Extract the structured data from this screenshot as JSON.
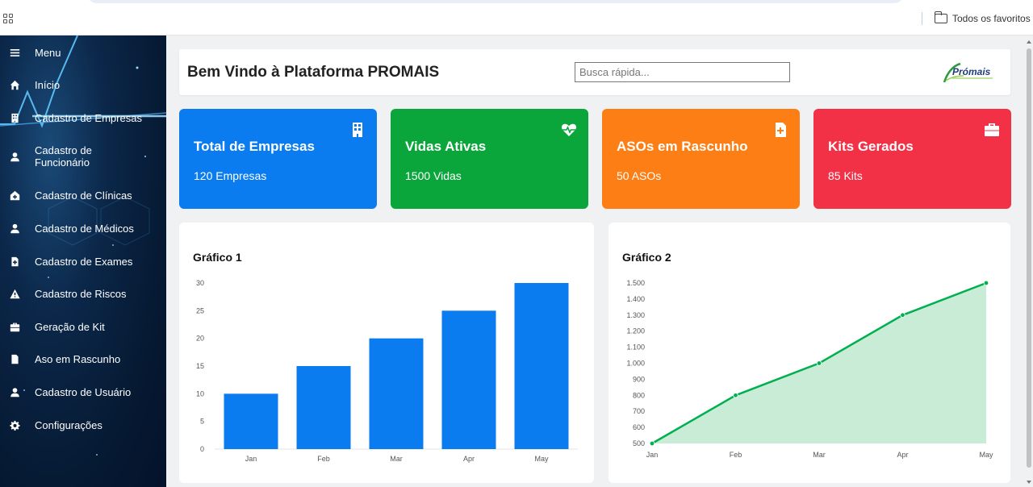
{
  "browser": {
    "bookmarks_label": "Todos os favoritos"
  },
  "sidebar": {
    "items": [
      {
        "label": "Menu",
        "icon": "menu-icon"
      },
      {
        "label": "Início",
        "icon": "home-icon"
      },
      {
        "label": "Cadastro de Empresas",
        "icon": "building-icon"
      },
      {
        "label": "Cadastro de\nFuncionário",
        "icon": "user-icon"
      },
      {
        "label": "Cadastro de Clínicas",
        "icon": "clinic-icon"
      },
      {
        "label": "Cadastro de Médicos",
        "icon": "doctor-icon"
      },
      {
        "label": "Cadastro de Exames",
        "icon": "file-medical-icon"
      },
      {
        "label": "Cadastro de Riscos",
        "icon": "warning-icon"
      },
      {
        "label": "Geração de Kit",
        "icon": "kit-icon"
      },
      {
        "label": "Aso em Rascunho",
        "icon": "file-icon"
      },
      {
        "label": "Cadastro de Usuário",
        "icon": "user-icon"
      },
      {
        "label": "Configurações",
        "icon": "gear-icon"
      }
    ]
  },
  "header": {
    "title": "Bem Vindo à Plataforma PROMAIS",
    "search_placeholder": "Busca rápida...",
    "logo_text": "Prómais"
  },
  "cards": [
    {
      "title": "Total de Empresas",
      "value": "120 Empresas",
      "color": "#0a7cf0",
      "icon": "building-icon"
    },
    {
      "title": "Vidas Ativas",
      "value": "1500 Vidas",
      "color": "#0aa63c",
      "icon": "heart-pulse-icon"
    },
    {
      "title": "ASOs em Rascunho",
      "value": "50 ASOs",
      "color": "#fd7e14",
      "icon": "file-medical-icon"
    },
    {
      "title": "Kits Gerados",
      "value": "85 Kits",
      "color": "#f23146",
      "icon": "kit-icon"
    }
  ],
  "chart_data": [
    {
      "type": "bar",
      "title": "Gráfico 1",
      "categories": [
        "Jan",
        "Feb",
        "Mar",
        "Apr",
        "May"
      ],
      "values": [
        10,
        15,
        20,
        25,
        30
      ],
      "ylim": [
        0,
        30
      ],
      "yticks": [
        "0",
        "5",
        "10",
        "15",
        "20",
        "25",
        "30"
      ],
      "color": "#0a7cf0",
      "grid": false
    },
    {
      "type": "area",
      "title": "Gráfico 2",
      "categories": [
        "Jan",
        "Feb",
        "Mar",
        "Apr",
        "May"
      ],
      "values": [
        500,
        800,
        1000,
        1300,
        1500
      ],
      "ylim": [
        500,
        1500
      ],
      "yticks": [
        "500",
        "600",
        "700",
        "800",
        "900",
        "1.000",
        "1.100",
        "1.200",
        "1.300",
        "1.400",
        "1.500"
      ],
      "line_color": "#00b050",
      "fill_color": "#c8ecd6",
      "grid": false
    }
  ]
}
